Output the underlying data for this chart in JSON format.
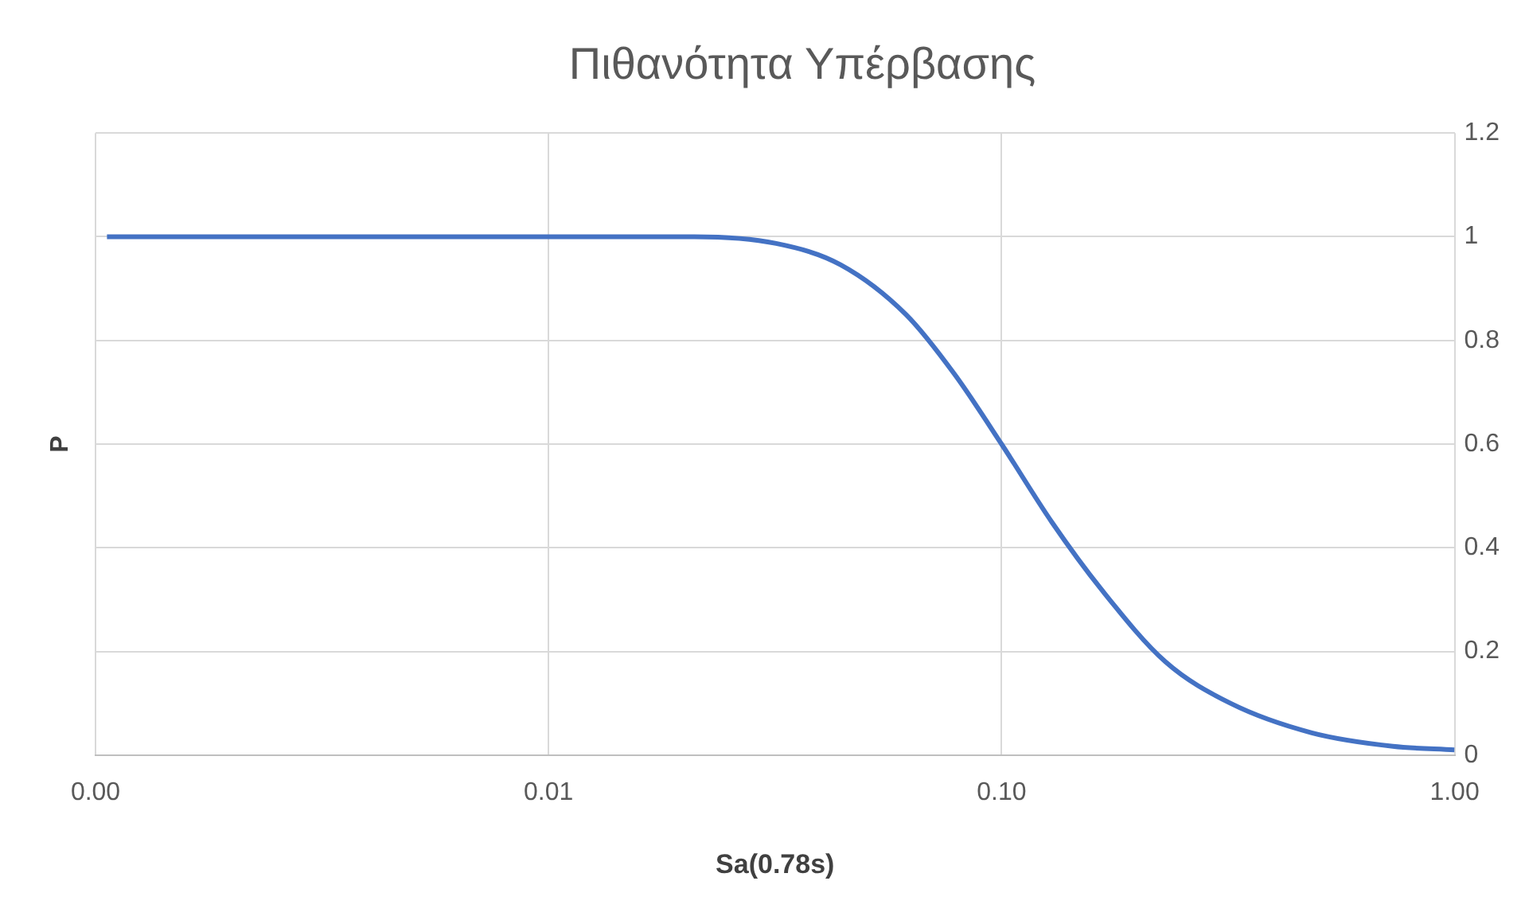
{
  "chart_data": {
    "type": "line",
    "title": "Πιθανότητα Υπέρβασης",
    "xlabel": "Sa(0.78s)",
    "ylabel": "P",
    "x": [
      0.00106,
      0.005,
      0.01,
      0.021,
      0.0318,
      0.0441,
      0.0615,
      0.0787,
      0.1,
      0.129,
      0.166,
      0.23,
      0.32,
      0.484,
      0.731,
      1
    ],
    "series": [
      {
        "color": "#4472c4",
        "values": [
          1,
          1,
          1,
          1,
          0.987,
          0.946,
          0.85,
          0.735,
          0.6,
          0.45,
          0.32,
          0.18,
          0.1,
          0.043,
          0.017,
          0.01
        ]
      }
    ],
    "log": "x",
    "xlim": [
      0.001,
      1
    ],
    "xticks": [
      {
        "value": 0.001,
        "label": "0.00"
      },
      {
        "value": 0.01,
        "label": "0.01"
      },
      {
        "value": 0.1,
        "label": "0.10"
      },
      {
        "value": 1,
        "label": "1.00"
      }
    ],
    "ylim": [
      0,
      1.2
    ],
    "yticks": [
      0,
      0.2,
      0.4,
      0.6,
      0.8,
      1,
      1.2
    ],
    "grid": true,
    "legend": false,
    "marker": "none",
    "line_style": "solid"
  }
}
